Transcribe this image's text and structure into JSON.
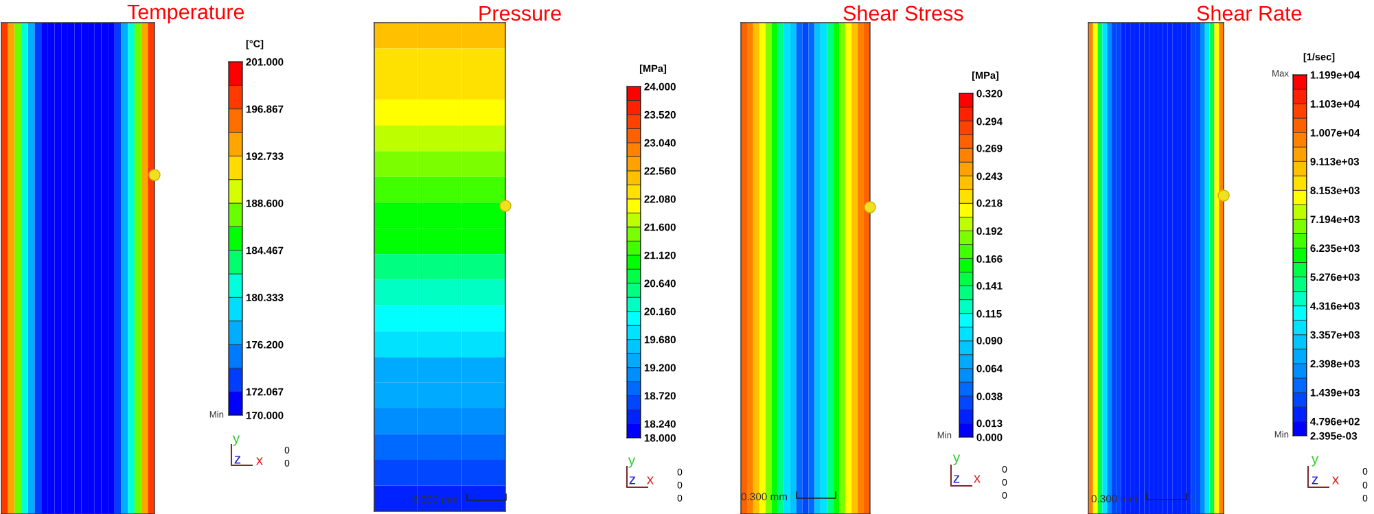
{
  "chart_data": [
    {
      "type": "heatmap",
      "title": "Temperature",
      "clabel": "[°C]",
      "tick_labels": false,
      "colors": [
        "#0000ff",
        "#0090ff",
        "#00ffff",
        "#00ff00",
        "#ffff00",
        "#ff8000",
        "#ff0000"
      ],
      "categories": [
        null,
        null,
        null,
        null,
        null,
        null,
        null,
        null,
        null,
        null,
        null,
        null,
        null,
        null,
        null,
        null,
        null,
        null,
        null,
        null,
        null,
        null,
        null
      ],
      "y_categories": [
        null
      ],
      "cells": [
        [
          198,
          193,
          187,
          181,
          177,
          174,
          172,
          172,
          172,
          172,
          172,
          172,
          172,
          172,
          172,
          172,
          172,
          174,
          177,
          181,
          187,
          193,
          198
        ]
      ],
      "clim": [
        170,
        201
      ],
      "cticks": [
        {
          "value": 170,
          "label": "170.000"
        },
        {
          "value": 172.067,
          "label": "172.067"
        },
        {
          "value": 176.2,
          "label": "176.200"
        },
        {
          "value": 180.333,
          "label": "180.333"
        },
        {
          "value": 184.467,
          "label": "184.467"
        },
        {
          "value": 188.6,
          "label": "188.600"
        },
        {
          "value": 192.733,
          "label": "192.733"
        },
        {
          "value": 196.867,
          "label": "196.867"
        },
        {
          "value": 201,
          "label": "201.000"
        }
      ],
      "annotations": [
        "Min",
        "y",
        "x",
        "z",
        "0",
        "0"
      ]
    },
    {
      "type": "heatmap",
      "title": "Pressure",
      "clabel": "[MPa]",
      "tick_labels": false,
      "colors": [
        "#0000ff",
        "#0090ff",
        "#00ffff",
        "#00ff00",
        "#ffff00",
        "#ff8000",
        "#ff0000"
      ],
      "categories": [
        null,
        null,
        null
      ],
      "y_categories": [
        null,
        null,
        null,
        null,
        null,
        null,
        null,
        null,
        null,
        null,
        null,
        null,
        null,
        null,
        null,
        null,
        null,
        null,
        null
      ],
      "cells": [
        [
          22.5,
          22.5,
          22.5
        ],
        [
          22.3,
          22.3,
          22.3
        ],
        [
          22.1,
          22.1,
          22.1
        ],
        [
          21.9,
          21.9,
          21.9
        ],
        [
          21.7,
          21.7,
          21.7
        ],
        [
          21.5,
          21.5,
          21.5
        ],
        [
          21.3,
          21.3,
          21.3
        ],
        [
          21.1,
          21.1,
          21.1
        ],
        [
          20.9,
          20.9,
          20.9
        ],
        [
          20.6,
          20.6,
          20.6
        ],
        [
          20.3,
          20.3,
          20.3
        ],
        [
          20.0,
          20.0,
          20.0
        ],
        [
          19.7,
          19.7,
          19.7
        ],
        [
          19.4,
          19.4,
          19.4
        ],
        [
          19.2,
          19.2,
          19.2
        ],
        [
          19.0,
          19.0,
          19.0
        ],
        [
          18.8,
          18.8,
          18.8
        ],
        [
          18.6,
          18.6,
          18.6
        ],
        [
          18.4,
          18.4,
          18.4
        ]
      ],
      "clim": [
        18,
        24
      ],
      "cticks": [
        {
          "value": 18,
          "label": "18.000"
        },
        {
          "value": 18.24,
          "label": "18.240"
        },
        {
          "value": 18.72,
          "label": "18.720"
        },
        {
          "value": 19.2,
          "label": "19.200"
        },
        {
          "value": 19.68,
          "label": "19.680"
        },
        {
          "value": 20.16,
          "label": "20.160"
        },
        {
          "value": 20.64,
          "label": "20.640"
        },
        {
          "value": 21.12,
          "label": "21.120"
        },
        {
          "value": 21.6,
          "label": "21.600"
        },
        {
          "value": 22.08,
          "label": "22.080"
        },
        {
          "value": 22.56,
          "label": "22.560"
        },
        {
          "value": 23.04,
          "label": "23.040"
        },
        {
          "value": 23.52,
          "label": "23.520"
        },
        {
          "value": 24,
          "label": "24.000"
        }
      ],
      "annotations": [
        "0.300 mm",
        "y",
        "x",
        "z",
        "0",
        "0",
        "0"
      ]
    },
    {
      "type": "heatmap",
      "title": "Shear Stress",
      "clabel": "[MPa]",
      "tick_labels": false,
      "colors": [
        "#0000ff",
        "#0090ff",
        "#00ffff",
        "#00ff00",
        "#ffff00",
        "#ff8000",
        "#ff0000"
      ],
      "categories": [
        null,
        null,
        null,
        null,
        null,
        null,
        null,
        null,
        null,
        null,
        null,
        null,
        null,
        null,
        null,
        null,
        null,
        null,
        null,
        null,
        null
      ],
      "y_categories": [
        null
      ],
      "cells": [
        [
          0.28,
          0.26,
          0.24,
          0.21,
          0.18,
          0.16,
          0.13,
          0.1,
          0.08,
          0.05,
          0.03,
          0.05,
          0.08,
          0.1,
          0.13,
          0.16,
          0.18,
          0.21,
          0.24,
          0.26,
          0.28
        ]
      ],
      "clim": [
        0,
        0.32
      ],
      "cticks": [
        {
          "value": 0,
          "label": "0.000"
        },
        {
          "value": 0.013,
          "label": "0.013"
        },
        {
          "value": 0.038,
          "label": "0.038"
        },
        {
          "value": 0.064,
          "label": "0.064"
        },
        {
          "value": 0.09,
          "label": "0.090"
        },
        {
          "value": 0.115,
          "label": "0.115"
        },
        {
          "value": 0.141,
          "label": "0.141"
        },
        {
          "value": 0.166,
          "label": "0.166"
        },
        {
          "value": 0.192,
          "label": "0.192"
        },
        {
          "value": 0.218,
          "label": "0.218"
        },
        {
          "value": 0.243,
          "label": "0.243"
        },
        {
          "value": 0.269,
          "label": "0.269"
        },
        {
          "value": 0.294,
          "label": "0.294"
        },
        {
          "value": 0.32,
          "label": "0.320"
        }
      ],
      "annotations": [
        "Min",
        "0.300 mm",
        "y",
        "x",
        "z",
        "0",
        "0",
        "0"
      ]
    },
    {
      "type": "heatmap",
      "title": "Shear Rate",
      "clabel": "[1/sec]",
      "tick_labels": false,
      "colors": [
        "#0000ff",
        "#0090ff",
        "#00ffff",
        "#00ff00",
        "#ffff00",
        "#ff8000",
        "#ff0000"
      ],
      "categories": [
        null,
        null,
        null,
        null,
        null,
        null,
        null,
        null,
        null,
        null,
        null,
        null,
        null,
        null,
        null,
        null,
        null,
        null,
        null,
        null,
        null,
        null,
        null,
        null,
        null,
        null,
        null,
        null,
        null
      ],
      "y_categories": [
        null
      ],
      "cells": [
        [
          10000,
          8000,
          5500,
          3500,
          2200,
          1400,
          1000,
          700,
          500,
          500,
          500,
          500,
          500,
          500,
          500,
          500,
          500,
          500,
          500,
          500,
          500,
          700,
          1000,
          1400,
          2200,
          3500,
          5500,
          8000,
          10000
        ]
      ],
      "clim": [
        0.002395,
        11990
      ],
      "cticks": [
        {
          "value": 0.002395,
          "label": "2.395e-03"
        },
        {
          "value": 479.6,
          "label": "4.796e+02"
        },
        {
          "value": 1439,
          "label": "1.439e+03"
        },
        {
          "value": 2398,
          "label": "2.398e+03"
        },
        {
          "value": 3357,
          "label": "3.357e+03"
        },
        {
          "value": 4316,
          "label": "4.316e+03"
        },
        {
          "value": 5276,
          "label": "5.276e+03"
        },
        {
          "value": 6235,
          "label": "6.235e+03"
        },
        {
          "value": 7194,
          "label": "7.194e+03"
        },
        {
          "value": 8153,
          "label": "8.153e+03"
        },
        {
          "value": 9113,
          "label": "9.113e+03"
        },
        {
          "value": 10070,
          "label": "1.007e+04"
        },
        {
          "value": 11030,
          "label": "1.103e+04"
        },
        {
          "value": 11990,
          "label": "1.199e+04"
        }
      ],
      "annotations": [
        "Max",
        "Min",
        "0.300 mm",
        "y",
        "x",
        "z",
        "0",
        "0",
        "0"
      ]
    }
  ]
}
